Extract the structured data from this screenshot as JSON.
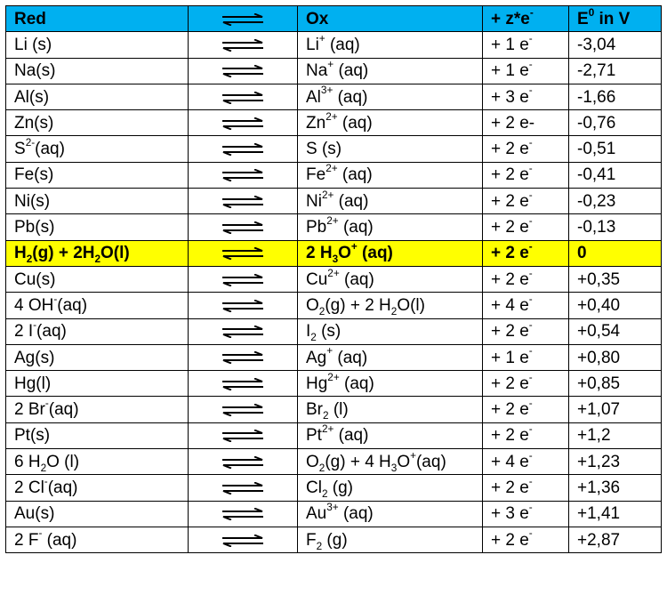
{
  "colors": {
    "header_bg": "#00b0f0",
    "highlight_bg": "#ffff00",
    "border": "#000000"
  },
  "icon": "equilibrium-arrows-icon",
  "header": {
    "red": "Red",
    "ox": "Ox",
    "electrons_html": "+ z*e<sup>-</sup>",
    "potential_html": "E<sup>0</sup> in V"
  },
  "rows": [
    {
      "red_html": "Li (s)",
      "ox_html": "Li<sup>+</sup> (aq)",
      "e_html": "+ 1 e<sup>-</sup>",
      "e0": "-3,04"
    },
    {
      "red_html": "Na(s)",
      "ox_html": "Na<sup>+</sup> (aq)",
      "e_html": "+ 1 e<sup>-</sup>",
      "e0": "-2,71"
    },
    {
      "red_html": "Al(s)",
      "ox_html": "Al<sup>3+</sup> (aq)",
      "e_html": "+ 3 e<sup>-</sup>",
      "e0": "-1,66"
    },
    {
      "red_html": "Zn(s)",
      "ox_html": "Zn<sup>2+</sup> (aq)",
      "e_html": "+ 2 e-",
      "e0": "-0,76"
    },
    {
      "red_html": "S<sup>2-</sup>(aq)",
      "ox_html": "S (s)",
      "e_html": "+ 2 e<sup>-</sup>",
      "e0": "-0,51"
    },
    {
      "red_html": "Fe(s)",
      "ox_html": "Fe<sup>2+</sup> (aq)",
      "e_html": "+ 2 e<sup>-</sup>",
      "e0": "-0,41"
    },
    {
      "red_html": "Ni(s)",
      "ox_html": "Ni<sup>2+</sup> (aq)",
      "e_html": "+ 2 e<sup>-</sup>",
      "e0": "-0,23"
    },
    {
      "red_html": "Pb(s)",
      "ox_html": "Pb<sup>2+</sup> (aq)",
      "e_html": "+ 2 e<sup>-</sup>",
      "e0": "-0,13"
    },
    {
      "red_html": "H<sub>2</sub>(g) + 2H<sub>2</sub>O(l)",
      "ox_html": "2 H<sub>3</sub>O<sup>+</sup> (aq)",
      "e_html": "+ 2 e<sup>-</sup>",
      "e0": "0",
      "highlight": true
    },
    {
      "red_html": "Cu(s)",
      "ox_html": "Cu<sup>2+</sup> (aq)",
      "e_html": "+ 2 e<sup>-</sup>",
      "e0": "+0,35"
    },
    {
      "red_html": "4 OH<sup>-</sup>(aq)",
      "ox_html": "O<sub>2</sub>(g) + 2 H<sub>2</sub>O(l)",
      "e_html": "+ 4 e<sup>-</sup>",
      "e0": "+0,40"
    },
    {
      "red_html": "2 I<sup>-</sup>(aq)",
      "ox_html": "I<sub>2</sub> (s)",
      "e_html": "+ 2 e<sup>-</sup>",
      "e0": "+0,54"
    },
    {
      "red_html": "Ag(s)",
      "ox_html": "Ag<sup>+</sup> (aq)",
      "e_html": "+ 1 e<sup>-</sup>",
      "e0": "+0,80"
    },
    {
      "red_html": "Hg(l)",
      "ox_html": "Hg<sup>2+</sup> (aq)",
      "e_html": "+ 2 e<sup>-</sup>",
      "e0": "+0,85"
    },
    {
      "red_html": "2 Br<sup>-</sup>(aq)",
      "ox_html": "Br<sub>2</sub> (l)",
      "e_html": "+ 2 e<sup>-</sup>",
      "e0": "+1,07"
    },
    {
      "red_html": "Pt(s)",
      "ox_html": "Pt<sup>2+</sup> (aq)",
      "e_html": "+ 2 e<sup>-</sup>",
      "e0": "+1,2"
    },
    {
      "red_html": "6 H<sub>2</sub>O (l)",
      "ox_html": "O<sub>2</sub>(g) + 4 H<sub>3</sub>O<sup>+</sup>(aq)",
      "e_html": "+ 4 e<sup>-</sup>",
      "e0": "+1,23"
    },
    {
      "red_html": "2 Cl<sup>-</sup>(aq)",
      "ox_html": "Cl<sub>2</sub> (g)",
      "e_html": "+ 2 e<sup>-</sup>",
      "e0": "+1,36"
    },
    {
      "red_html": "Au(s)",
      "ox_html": "Au<sup>3+</sup> (aq)",
      "e_html": "+ 3 e<sup>-</sup>",
      "e0": "+1,41"
    },
    {
      "red_html": "2 F<sup>-</sup> (aq)",
      "ox_html": "F<sub>2</sub> (g)",
      "e_html": "+ 2 e<sup>-</sup>",
      "e0": "+2,87"
    }
  ]
}
